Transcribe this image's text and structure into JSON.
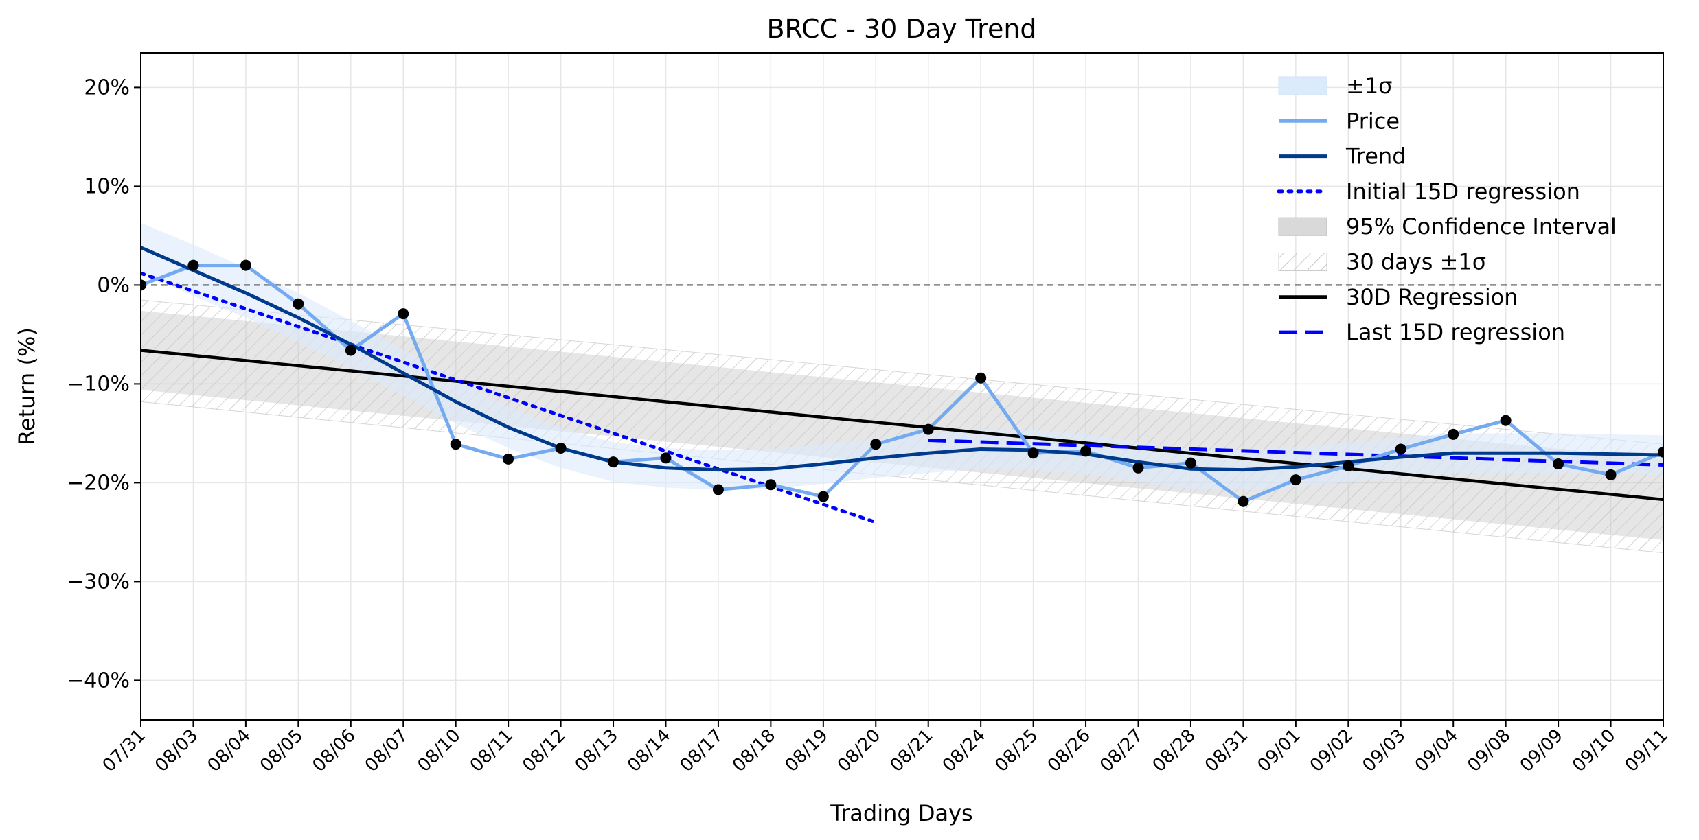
{
  "chart_data": {
    "type": "line",
    "title": "BRCC - 30 Day Trend",
    "xlabel": "Trading Days",
    "ylabel": "Return (%)",
    "ylim": [
      -44,
      23.5
    ],
    "yticks": [
      20,
      10,
      0,
      -10,
      -20,
      -30,
      -40
    ],
    "ytick_labels": [
      "20%",
      "10%",
      "0%",
      "−10%",
      "−20%",
      "−30%",
      "−40%"
    ],
    "grid": true,
    "legend_position": "top-right",
    "categories": [
      "07/31",
      "08/03",
      "08/04",
      "08/05",
      "08/06",
      "08/07",
      "08/10",
      "08/11",
      "08/12",
      "08/13",
      "08/14",
      "08/17",
      "08/18",
      "08/19",
      "08/20",
      "08/21",
      "08/24",
      "08/25",
      "08/26",
      "08/27",
      "08/28",
      "08/31",
      "09/01",
      "09/02",
      "09/03",
      "09/04",
      "09/08",
      "09/09",
      "09/10",
      "09/11"
    ],
    "series": [
      {
        "name": "Price",
        "color": "#74aaf0",
        "values": [
          0,
          2.0,
          2.0,
          -1.9,
          -6.6,
          -2.9,
          -16.1,
          -17.6,
          -16.5,
          -17.9,
          -17.5,
          -20.7,
          -20.2,
          -21.4,
          -16.1,
          -14.6,
          -9.4,
          -17.0,
          -16.8,
          -18.5,
          -18.0,
          -21.9,
          -19.7,
          -18.3,
          -16.6,
          -15.1,
          -13.7,
          -18.1,
          -19.2,
          -16.9
        ]
      },
      {
        "name": "Trend",
        "color": "#003a8c",
        "values": [
          3.8,
          1.5,
          -0.8,
          -3.3,
          -6.0,
          -8.9,
          -11.8,
          -14.4,
          -16.5,
          -17.9,
          -18.5,
          -18.7,
          -18.6,
          -18.1,
          -17.5,
          -17.0,
          -16.6,
          -16.7,
          -17.1,
          -17.9,
          -18.6,
          -18.7,
          -18.4,
          -17.9,
          -17.4,
          -17.0,
          -17.0,
          -17.0,
          -17.1,
          -17.2
        ]
      },
      {
        "name": "±1σ",
        "type": "band",
        "color": "#dcebfc",
        "upper": [
          6.3,
          4.1,
          1.7,
          -0.8,
          -3.6,
          -6.6,
          -9.6,
          -12.3,
          -14.5,
          -15.9,
          -16.5,
          -16.7,
          -16.6,
          -16.1,
          -15.5,
          -15.0,
          -14.6,
          -14.7,
          -15.1,
          -15.9,
          -16.6,
          -16.7,
          -16.4,
          -15.9,
          -15.4,
          -15.0,
          -15.0,
          -15.0,
          -15.1,
          -15.2
        ],
        "lower": [
          1.3,
          -1.1,
          -3.3,
          -5.8,
          -8.4,
          -11.2,
          -14.0,
          -16.5,
          -18.5,
          -19.9,
          -20.5,
          -20.7,
          -20.6,
          -20.1,
          -19.5,
          -19.0,
          -18.6,
          -18.7,
          -19.1,
          -19.9,
          -20.6,
          -20.7,
          -20.4,
          -19.9,
          -19.4,
          -19.0,
          -19.0,
          -19.0,
          -19.1,
          -19.2
        ]
      },
      {
        "name": "Initial 15D regression",
        "color": "#0000ff",
        "x_range": [
          "07/31",
          "08/20"
        ],
        "y_range": [
          1.2,
          -24.0
        ]
      },
      {
        "name": "95% Confidence Interval",
        "type": "band",
        "color": "#c8c8c8",
        "upper_range": [
          -2.6,
          -17.6
        ],
        "lower_range": [
          -10.6,
          -25.8
        ]
      },
      {
        "name": "30 days ±1σ",
        "type": "band",
        "color": "#bbbbbb",
        "upper_range": [
          -1.5,
          -16.1
        ],
        "lower_range": [
          -11.8,
          -27.1
        ]
      },
      {
        "name": "30D Regression",
        "color": "#000000",
        "x_range": [
          "07/31",
          "09/11"
        ],
        "y_range": [
          -6.6,
          -21.7
        ]
      },
      {
        "name": "Last 15D regression",
        "color": "#0000ff",
        "x_range": [
          "08/21",
          "09/11"
        ],
        "y_range": [
          -15.7,
          -18.2
        ]
      }
    ],
    "reference_line": {
      "y": 0,
      "color": "#808080"
    }
  }
}
